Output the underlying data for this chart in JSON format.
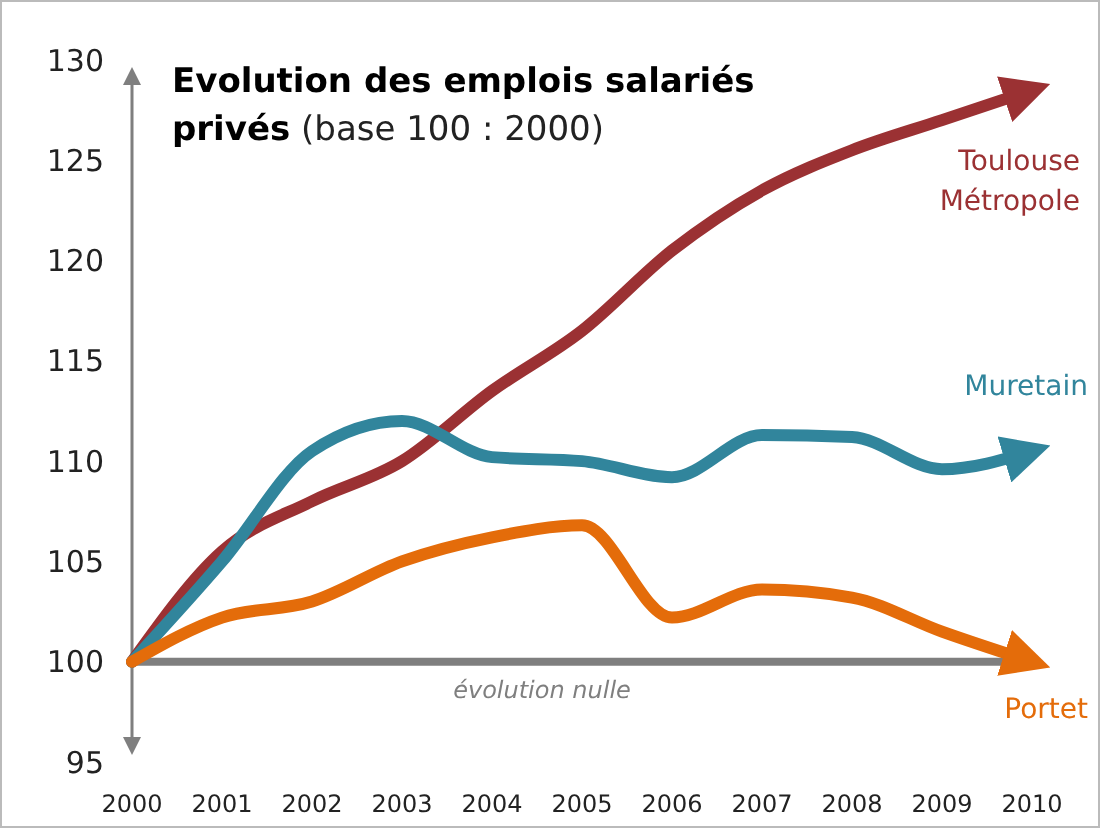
{
  "chart_data": {
    "type": "line",
    "title": "Evolution des emplois salariés",
    "subtitle": "privés (base 100 : 2000)",
    "x": [
      2000,
      2001,
      2002,
      2003,
      2004,
      2005,
      2006,
      2007,
      2008,
      2009,
      2010
    ],
    "xlim": [
      2000,
      2010
    ],
    "xticks": [
      2000,
      2001,
      2002,
      2003,
      2004,
      2005,
      2006,
      2007,
      2008,
      2009,
      2010
    ],
    "ylim": [
      95,
      130
    ],
    "yticks": [
      95,
      100,
      105,
      110,
      115,
      120,
      125,
      130
    ],
    "grid": false,
    "marker": "none",
    "line_style": "solid",
    "ref_lines": [
      {
        "axis": "y",
        "value": 100,
        "label": "évolution nulle",
        "color": "#7f7f7f"
      }
    ],
    "series": [
      {
        "name": "Toulouse Métropole",
        "color": "#9b3133",
        "values": [
          100,
          105.5,
          108,
          110,
          113.5,
          116.5,
          120.5,
          123.5,
          125.5,
          127,
          128.5
        ]
      },
      {
        "name": "Muretain",
        "color": "#31859c",
        "values": [
          100,
          105,
          110.5,
          112,
          110.2,
          110,
          109.2,
          111.3,
          111.2,
          109.6,
          110.5
        ]
      },
      {
        "name": "Portet",
        "color": "#e46c0a",
        "values": [
          100,
          102.2,
          103,
          105,
          106.2,
          106.8,
          102.2,
          103.6,
          103.2,
          101.5,
          100
        ]
      }
    ]
  }
}
